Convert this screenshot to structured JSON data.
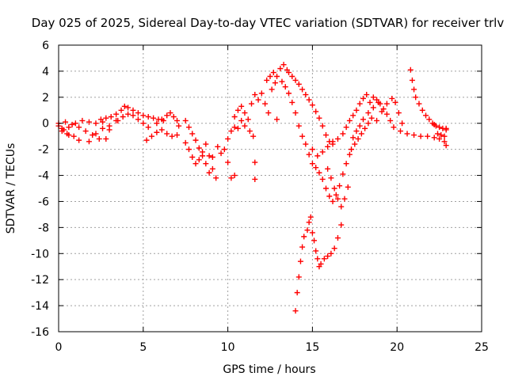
{
  "chart_data": {
    "type": "scatter",
    "title": "Day 025 of 2025, Sidereal Day-to-day VTEC variation (SDTVAR) for receiver trlv",
    "xlabel": "GPS time / hours",
    "ylabel": "SDTVAR / TECUs",
    "xlim": [
      0,
      25
    ],
    "ylim": [
      -16,
      6
    ],
    "xticks": [
      0,
      5,
      10,
      15,
      20,
      25
    ],
    "yticks": [
      -16,
      -14,
      -12,
      -10,
      -8,
      -6,
      -4,
      -2,
      0,
      2,
      4,
      6
    ],
    "grid": true,
    "legend": "none",
    "marker": "plus",
    "color": "#ff0000",
    "series": [
      {
        "points": [
          [
            0.0,
            -0.2
          ],
          [
            0.3,
            -0.5
          ],
          [
            0.6,
            -0.9
          ],
          [
            0.9,
            -1.0
          ],
          [
            1.2,
            -1.3
          ],
          [
            0.2,
            -0.6
          ],
          [
            0.5,
            -0.8
          ],
          [
            0.0,
            0.0
          ],
          [
            0.4,
            0.1
          ],
          [
            0.8,
            -0.1
          ],
          [
            1.2,
            -0.3
          ],
          [
            1.6,
            -0.6
          ],
          [
            2.0,
            -0.9
          ],
          [
            2.4,
            -1.2
          ],
          [
            0.2,
            -0.4
          ],
          [
            0.6,
            -0.3
          ],
          [
            1.0,
            0.0
          ],
          [
            1.4,
            0.2
          ],
          [
            1.8,
            0.1
          ],
          [
            2.2,
            0.0
          ],
          [
            2.6,
            0.1
          ],
          [
            1.8,
            -1.4
          ],
          [
            2.2,
            -0.8
          ],
          [
            2.6,
            -0.4
          ],
          [
            3.0,
            -0.2
          ],
          [
            3.4,
            0.2
          ],
          [
            2.8,
            -1.2
          ],
          [
            3.0,
            -0.5
          ],
          [
            2.5,
            0.3
          ],
          [
            2.8,
            0.4
          ],
          [
            3.1,
            0.5
          ],
          [
            3.4,
            0.7
          ],
          [
            3.7,
            1.0
          ],
          [
            3.9,
            1.3
          ],
          [
            4.1,
            1.2
          ],
          [
            4.4,
            1.0
          ],
          [
            4.7,
            0.8
          ],
          [
            5.0,
            0.6
          ],
          [
            5.3,
            0.5
          ],
          [
            5.6,
            0.4
          ],
          [
            5.9,
            0.3
          ],
          [
            6.2,
            0.2
          ],
          [
            3.5,
            0.2
          ],
          [
            3.8,
            0.5
          ],
          [
            4.1,
            0.7
          ],
          [
            4.4,
            0.6
          ],
          [
            4.7,
            0.3
          ],
          [
            5.0,
            0.0
          ],
          [
            5.3,
            -0.3
          ],
          [
            5.2,
            -1.3
          ],
          [
            5.5,
            -1.0
          ],
          [
            5.8,
            -0.7
          ],
          [
            6.1,
            -0.5
          ],
          [
            6.4,
            -0.8
          ],
          [
            6.7,
            -1.0
          ],
          [
            7.0,
            -0.9
          ],
          [
            5.8,
            0.0
          ],
          [
            6.1,
            0.3
          ],
          [
            6.4,
            0.6
          ],
          [
            6.6,
            0.8
          ],
          [
            6.8,
            0.5
          ],
          [
            7.0,
            0.2
          ],
          [
            7.1,
            -0.2
          ],
          [
            7.5,
            0.2
          ],
          [
            7.7,
            -0.3
          ],
          [
            7.9,
            -0.8
          ],
          [
            8.1,
            -1.3
          ],
          [
            8.3,
            -1.9
          ],
          [
            8.5,
            -2.5
          ],
          [
            8.7,
            -3.1
          ],
          [
            7.5,
            -1.5
          ],
          [
            7.7,
            -2.0
          ],
          [
            7.9,
            -2.6
          ],
          [
            8.1,
            -3.1
          ],
          [
            8.3,
            -2.8
          ],
          [
            8.5,
            -2.2
          ],
          [
            8.7,
            -1.6
          ],
          [
            8.9,
            -2.5
          ],
          [
            9.1,
            -3.5
          ],
          [
            9.3,
            -4.2
          ],
          [
            8.9,
            -3.8
          ],
          [
            9.1,
            -2.6
          ],
          [
            9.4,
            -1.8
          ],
          [
            9.6,
            -2.3
          ],
          [
            9.8,
            -2.0
          ],
          [
            10.0,
            -3.0
          ],
          [
            10.2,
            -4.2
          ],
          [
            10.4,
            -4.0
          ],
          [
            10.0,
            -1.2
          ],
          [
            10.2,
            -0.6
          ],
          [
            10.4,
            -0.3
          ],
          [
            10.4,
            0.5
          ],
          [
            10.6,
            1.0
          ],
          [
            10.8,
            1.3
          ],
          [
            11.0,
            0.8
          ],
          [
            11.2,
            0.3
          ],
          [
            11.4,
            1.5
          ],
          [
            11.6,
            2.2
          ],
          [
            10.6,
            -0.4
          ],
          [
            10.8,
            0.2
          ],
          [
            11.0,
            -0.2
          ],
          [
            11.3,
            -0.6
          ],
          [
            11.5,
            -1.0
          ],
          [
            11.6,
            -3.0
          ],
          [
            11.6,
            -4.3
          ],
          [
            11.8,
            1.8
          ],
          [
            12.0,
            2.3
          ],
          [
            12.2,
            1.5
          ],
          [
            12.4,
            0.8
          ],
          [
            12.6,
            2.6
          ],
          [
            12.8,
            3.1
          ],
          [
            12.9,
            0.3
          ],
          [
            12.3,
            3.3
          ],
          [
            12.5,
            3.6
          ],
          [
            12.7,
            3.9
          ],
          [
            12.9,
            3.6
          ],
          [
            13.1,
            4.2
          ],
          [
            13.3,
            4.5
          ],
          [
            13.5,
            4.1
          ],
          [
            13.2,
            3.2
          ],
          [
            13.4,
            2.8
          ],
          [
            13.6,
            2.3
          ],
          [
            13.8,
            1.6
          ],
          [
            14.0,
            0.8
          ],
          [
            14.2,
            -0.2
          ],
          [
            14.4,
            -1.0
          ],
          [
            13.6,
            3.9
          ],
          [
            13.8,
            3.6
          ],
          [
            14.0,
            3.3
          ],
          [
            14.2,
            3.0
          ],
          [
            14.4,
            2.6
          ],
          [
            14.6,
            2.2
          ],
          [
            14.8,
            1.8
          ],
          [
            14.6,
            -1.6
          ],
          [
            14.8,
            -2.4
          ],
          [
            15.0,
            -3.1
          ],
          [
            15.2,
            -3.4
          ],
          [
            15.4,
            -3.8
          ],
          [
            15.6,
            -4.3
          ],
          [
            15.8,
            -5.0
          ],
          [
            15.0,
            1.4
          ],
          [
            15.2,
            0.9
          ],
          [
            15.4,
            0.4
          ],
          [
            15.6,
            -0.2
          ],
          [
            15.8,
            -0.9
          ],
          [
            16.0,
            -1.4
          ],
          [
            16.2,
            -1.6
          ],
          [
            16.0,
            -5.6
          ],
          [
            16.2,
            -6.0
          ],
          [
            16.4,
            -5.5
          ],
          [
            16.6,
            -4.8
          ],
          [
            16.8,
            -3.9
          ],
          [
            17.0,
            -3.1
          ],
          [
            17.2,
            -2.4
          ],
          [
            15.9,
            -3.5
          ],
          [
            16.1,
            -4.2
          ],
          [
            16.3,
            -5.0
          ],
          [
            16.5,
            -5.8
          ],
          [
            16.7,
            -6.4
          ],
          [
            16.9,
            -5.8
          ],
          [
            17.1,
            -4.9
          ],
          [
            14.0,
            -14.4
          ],
          [
            14.1,
            -13.0
          ],
          [
            14.2,
            -11.8
          ],
          [
            14.3,
            -10.6
          ],
          [
            14.4,
            -9.5
          ],
          [
            14.5,
            -8.7
          ],
          [
            14.7,
            -8.2
          ],
          [
            14.8,
            -7.6
          ],
          [
            14.9,
            -7.2
          ],
          [
            15.0,
            -8.4
          ],
          [
            15.1,
            -9.0
          ],
          [
            15.2,
            -9.8
          ],
          [
            15.3,
            -10.4
          ],
          [
            15.4,
            -11.0
          ],
          [
            15.5,
            -10.8
          ],
          [
            15.7,
            -10.4
          ],
          [
            15.9,
            -10.2
          ],
          [
            16.1,
            -10.0
          ],
          [
            16.3,
            -9.6
          ],
          [
            16.5,
            -8.8
          ],
          [
            16.7,
            -7.8
          ],
          [
            15.0,
            -2.0
          ],
          [
            15.3,
            -2.5
          ],
          [
            15.6,
            -2.2
          ],
          [
            15.9,
            -1.8
          ],
          [
            16.2,
            -1.4
          ],
          [
            16.5,
            -1.2
          ],
          [
            16.8,
            -0.8
          ],
          [
            17.0,
            -0.3
          ],
          [
            17.2,
            0.2
          ],
          [
            17.4,
            0.6
          ],
          [
            17.6,
            1.0
          ],
          [
            17.8,
            1.5
          ],
          [
            18.0,
            1.9
          ],
          [
            18.2,
            2.2
          ],
          [
            17.3,
            -2.0
          ],
          [
            17.5,
            -1.6
          ],
          [
            17.7,
            -1.2
          ],
          [
            17.9,
            -0.8
          ],
          [
            18.1,
            -0.4
          ],
          [
            18.3,
            0.0
          ],
          [
            18.5,
            0.4
          ],
          [
            17.4,
            -1.1
          ],
          [
            17.6,
            -0.6
          ],
          [
            17.8,
            -0.2
          ],
          [
            18.0,
            0.3
          ],
          [
            18.3,
            0.8
          ],
          [
            18.6,
            1.2
          ],
          [
            18.9,
            1.6
          ],
          [
            18.4,
            1.6
          ],
          [
            18.6,
            2.0
          ],
          [
            18.8,
            1.8
          ],
          [
            19.0,
            1.5
          ],
          [
            19.2,
            1.1
          ],
          [
            19.4,
            0.7
          ],
          [
            19.6,
            0.2
          ],
          [
            18.8,
            0.2
          ],
          [
            19.1,
            0.9
          ],
          [
            19.4,
            1.5
          ],
          [
            19.7,
            1.9
          ],
          [
            19.9,
            1.6
          ],
          [
            20.1,
            0.8
          ],
          [
            20.3,
            0.0
          ],
          [
            19.8,
            -0.3
          ],
          [
            20.2,
            -0.6
          ],
          [
            20.6,
            -0.8
          ],
          [
            21.0,
            -0.9
          ],
          [
            21.4,
            -1.0
          ],
          [
            21.8,
            -1.0
          ],
          [
            22.2,
            -1.1
          ],
          [
            22.5,
            -1.2
          ],
          [
            22.8,
            -1.4
          ],
          [
            22.9,
            -1.7
          ],
          [
            22.6,
            -0.9
          ],
          [
            22.9,
            -0.5
          ],
          [
            22.8,
            -1.0
          ],
          [
            22.4,
            -0.8
          ],
          [
            20.8,
            4.1
          ],
          [
            20.9,
            3.3
          ],
          [
            21.0,
            2.6
          ],
          [
            21.1,
            2.0
          ],
          [
            21.3,
            1.5
          ],
          [
            21.5,
            1.0
          ],
          [
            21.7,
            0.6
          ],
          [
            21.9,
            0.3
          ],
          [
            22.1,
            0.0
          ],
          [
            22.3,
            -0.2
          ],
          [
            22.5,
            -0.3
          ],
          [
            22.7,
            -0.4
          ],
          [
            22.9,
            -0.4
          ],
          [
            22.2,
            -0.1
          ]
        ]
      }
    ]
  }
}
